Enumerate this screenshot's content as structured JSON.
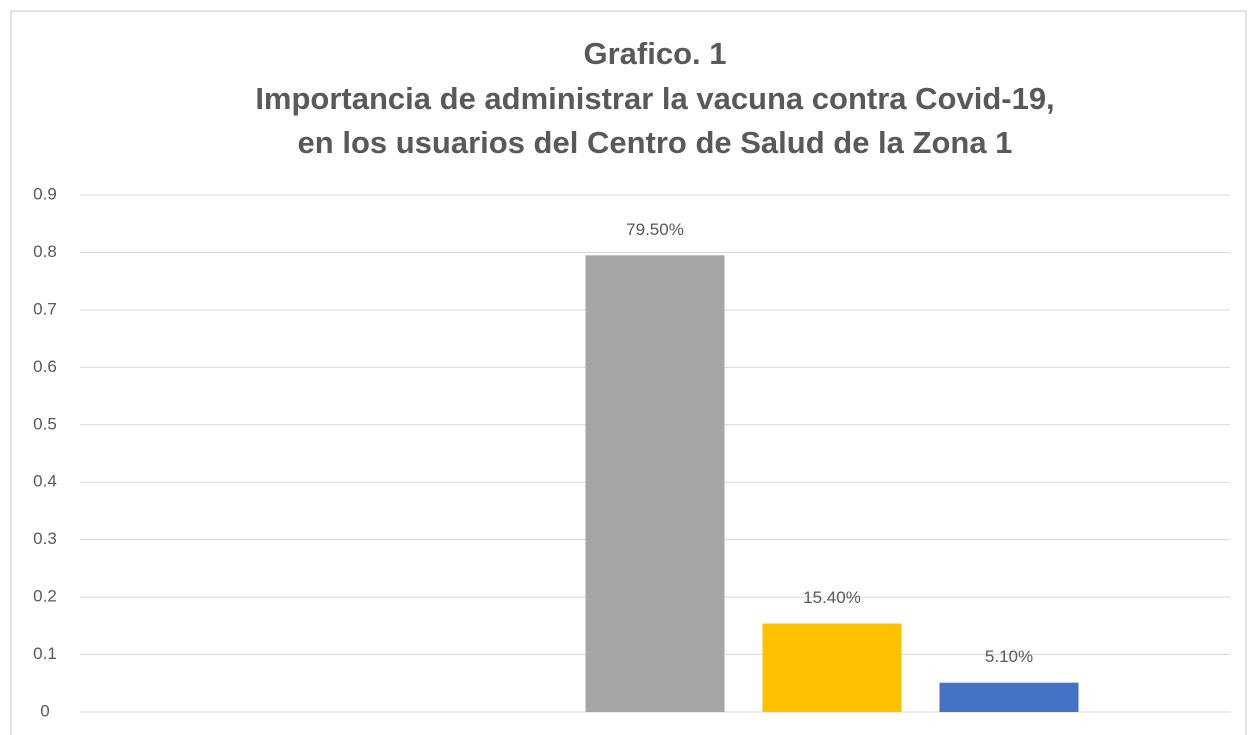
{
  "chart_data": {
    "type": "bar",
    "title": [
      "Grafico. 1",
      "Importancia de administrar la vacuna contra Covid-19,",
      "en los usuarios del Centro de Salud de la Zona 1"
    ],
    "categories": [
      null,
      null,
      null,
      null,
      null
    ],
    "values": [
      null,
      null,
      0.795,
      0.154,
      0.051
    ],
    "value_labels": [
      null,
      null,
      "79.50%",
      "15.40%",
      "5.10%"
    ],
    "colors": [
      null,
      null,
      "#a5a5a5",
      "#ffc000",
      "#4472c4"
    ],
    "ylim": [
      0,
      0.9
    ],
    "yticks": [
      0,
      0.1,
      0.2,
      0.3,
      0.4,
      0.5,
      0.6,
      0.7,
      0.8,
      0.9
    ],
    "grid": true
  }
}
